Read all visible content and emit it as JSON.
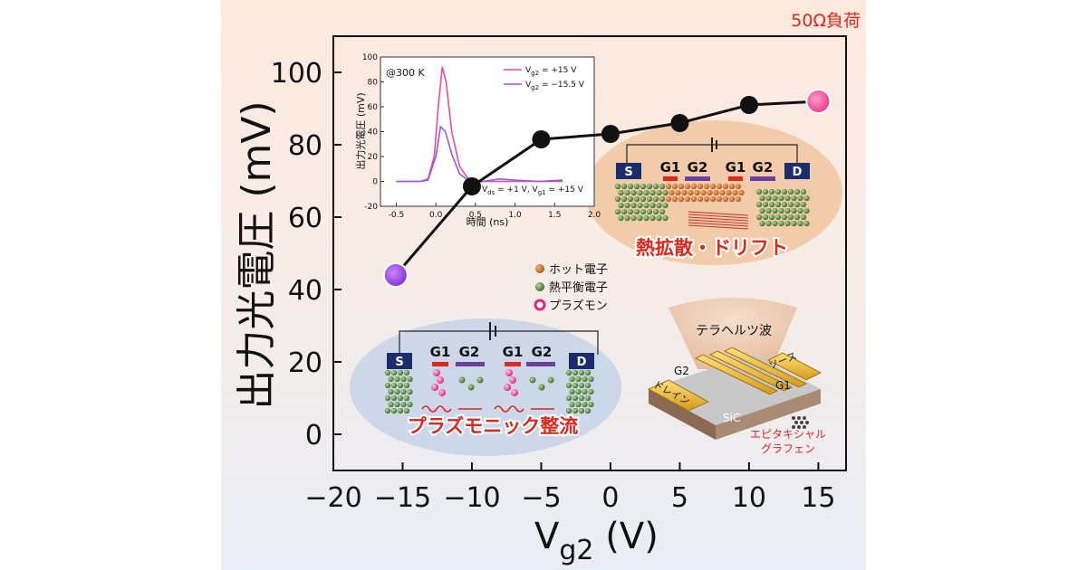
{
  "load_label": "50Ω負荷",
  "chart_data": {
    "type": "line",
    "y_label": "出力光電圧 (mV)",
    "x_label_main": "V",
    "x_label_sub": "g2",
    "x_label_unit": " (V)",
    "xlim": [
      -20,
      17
    ],
    "ylim": [
      -10,
      110
    ],
    "x_ticks": [
      "−20",
      "−15",
      "−10",
      "−5",
      "0",
      "5",
      "10",
      "15"
    ],
    "x_tick_values": [
      -20,
      -15,
      -10,
      -5,
      0,
      5,
      10,
      15
    ],
    "y_ticks": [
      "0",
      "20",
      "40",
      "60",
      "80",
      "100"
    ],
    "y_tick_values": [
      0,
      20,
      40,
      60,
      80,
      100
    ],
    "series": [
      {
        "x": [
          -15.5,
          -10,
          -5,
          0,
          5,
          10,
          15
        ],
        "y": [
          44,
          68.5,
          81.5,
          83,
          86,
          91,
          92
        ],
        "point_colors": [
          "#9b3ee8",
          "#111111",
          "#111111",
          "#111111",
          "#111111",
          "#111111",
          "#ee3d96"
        ]
      }
    ]
  },
  "inset": {
    "temperature": "@300 K",
    "y_label": "出力光電圧 (mV)",
    "x_label": "時間 (ns)",
    "xlim": [
      -0.7,
      2.0
    ],
    "ylim": [
      -20,
      100
    ],
    "x_ticks": [
      "-0.5",
      "0.0",
      "0.5",
      "1.0",
      "1.5",
      "2.0"
    ],
    "x_tick_values": [
      -0.5,
      0.0,
      0.5,
      1.0,
      1.5,
      2.0
    ],
    "y_ticks": [
      "-20",
      "0",
      "20",
      "40",
      "60",
      "80",
      "100"
    ],
    "y_tick_values": [
      -20,
      0,
      20,
      40,
      60,
      80,
      100
    ],
    "legend": [
      {
        "label": "V",
        "sub": "g2",
        "value": " = +15 V",
        "color": "#ee4a9a"
      },
      {
        "label": "V",
        "sub": "g2",
        "value": " = −15.5 V",
        "color": "#9b55e0"
      }
    ],
    "condition_text": "V",
    "condition_sub1": "ds",
    "condition_mid": " = +1 V, V",
    "condition_sub2": "g1",
    "condition_end": " = +15 V",
    "pink_series": {
      "t": [
        -0.5,
        -0.2,
        -0.1,
        -0.02,
        0.03,
        0.08,
        0.13,
        0.2,
        0.3,
        0.4,
        0.55,
        0.7,
        1.0,
        1.6
      ],
      "v": [
        0,
        0,
        2,
        20,
        60,
        92,
        80,
        40,
        12,
        3,
        0,
        0,
        0,
        0
      ]
    },
    "purple_series": {
      "t": [
        -0.5,
        -0.2,
        -0.1,
        0.0,
        0.06,
        0.12,
        0.2,
        0.3,
        0.45,
        0.6,
        0.8,
        1.0,
        1.3,
        1.6
      ],
      "v": [
        0,
        0,
        1,
        20,
        44,
        40,
        22,
        6,
        -1,
        0,
        2,
        1,
        0,
        1
      ]
    }
  },
  "legend_particles": [
    {
      "label": "ホット電子",
      "color": "#c8722e"
    },
    {
      "label": "熱平衡電子",
      "color": "#6a9a4a"
    },
    {
      "label": "プラズモン",
      "color": "#e83a8e"
    }
  ],
  "top_device": {
    "caption": "熱拡散・ドリフト",
    "source": "S",
    "drain": "D",
    "gates": [
      "G1",
      "G2",
      "G1",
      "G2"
    ]
  },
  "bottom_device": {
    "caption": "プラズモニック整流",
    "source": "S",
    "drain": "D",
    "gates": [
      "G1",
      "G2",
      "G1",
      "G2"
    ]
  },
  "chip": {
    "wave_label": "テラヘルツ波",
    "g2": "G2",
    "g1": "G1",
    "source": "ソース",
    "drain": "ドレイン",
    "substrate": "SiC",
    "graphene_line1": "エピタキシャル",
    "graphene_line2": "グラフェン"
  }
}
